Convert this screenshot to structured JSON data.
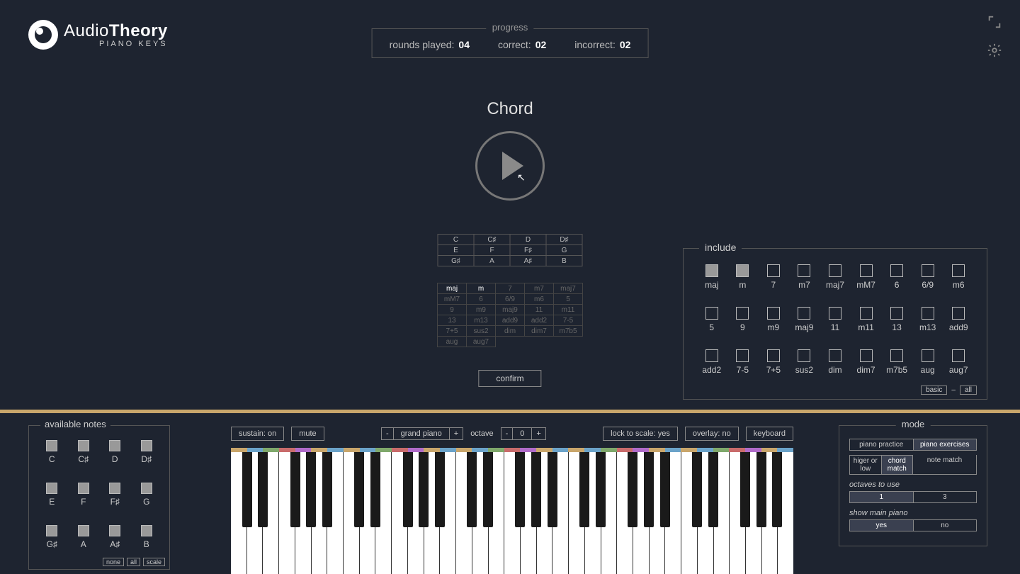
{
  "logo": {
    "line1a": "Audio",
    "line1b": "Theory",
    "line2": "PIANO KEYS"
  },
  "progress": {
    "legend": "progress",
    "rounds_label": "rounds played:",
    "rounds_val": "04",
    "correct_label": "correct:",
    "correct_val": "02",
    "incorrect_label": "incorrect:",
    "incorrect_val": "02"
  },
  "chord_label": "Chord",
  "note_rows": [
    [
      "C",
      "C♯",
      "D",
      "D♯"
    ],
    [
      "E",
      "F",
      "F♯",
      "G"
    ],
    [
      "G♯",
      "A",
      "A♯",
      "B"
    ]
  ],
  "qual_rows": [
    [
      "maj",
      "m",
      "7",
      "m7",
      "maj7"
    ],
    [
      "mM7",
      "6",
      "6/9",
      "m6",
      "5"
    ],
    [
      "9",
      "m9",
      "maj9",
      "11",
      "m11"
    ],
    [
      "13",
      "m13",
      "add9",
      "add2",
      "7-5"
    ],
    [
      "7+5",
      "sus2",
      "dim",
      "dim7",
      "m7b5"
    ],
    [
      "aug",
      "aug7",
      "",
      "",
      ""
    ]
  ],
  "qual_active": [
    "maj",
    "m"
  ],
  "confirm": "confirm",
  "include": {
    "legend": "include",
    "items": [
      "maj",
      "m",
      "7",
      "m7",
      "maj7",
      "mM7",
      "6",
      "6/9",
      "m6",
      "5",
      "9",
      "m9",
      "maj9",
      "11",
      "m11",
      "13",
      "m13",
      "add9",
      "add2",
      "7-5",
      "7+5",
      "sus2",
      "dim",
      "dim7",
      "m7b5",
      "aug",
      "aug7"
    ],
    "checked": [
      "maj",
      "m"
    ],
    "footer": [
      "basic",
      "–",
      "all"
    ]
  },
  "avail": {
    "legend": "available notes",
    "items": [
      "C",
      "C♯",
      "D",
      "D♯",
      "E",
      "F",
      "F♯",
      "G",
      "G♯",
      "A",
      "A♯",
      "B"
    ],
    "footer": [
      "none",
      "all",
      "scale"
    ]
  },
  "pbar": {
    "sustain": "sustain: on",
    "mute": "mute",
    "instrument": "grand piano",
    "octave_label": "octave",
    "octave_val": "0",
    "lock": "lock to scale: yes",
    "overlay": "overlay: no",
    "keyboard": "keyboard"
  },
  "piano": {
    "white_count": 35,
    "strip_colors": [
      "#c9a66b",
      "#6ba3c9",
      "#7fa86b",
      "#c96b6b",
      "#b06bc9",
      "#c9a66b",
      "#6ba3c9"
    ],
    "black_pattern": [
      1,
      1,
      0,
      1,
      1,
      1,
      0
    ]
  },
  "mode": {
    "legend": "mode",
    "tabs": [
      "piano practice",
      "piano exercises"
    ],
    "tabs_active": 1,
    "tabs2": [
      "higer or low",
      "chord match",
      "note match"
    ],
    "tabs2_active": 1,
    "oct_label": "octaves to use",
    "oct_opts": [
      "1",
      "3"
    ],
    "oct_active": 0,
    "show_label": "show main piano",
    "show_opts": [
      "yes",
      "no"
    ],
    "show_active": 0
  }
}
